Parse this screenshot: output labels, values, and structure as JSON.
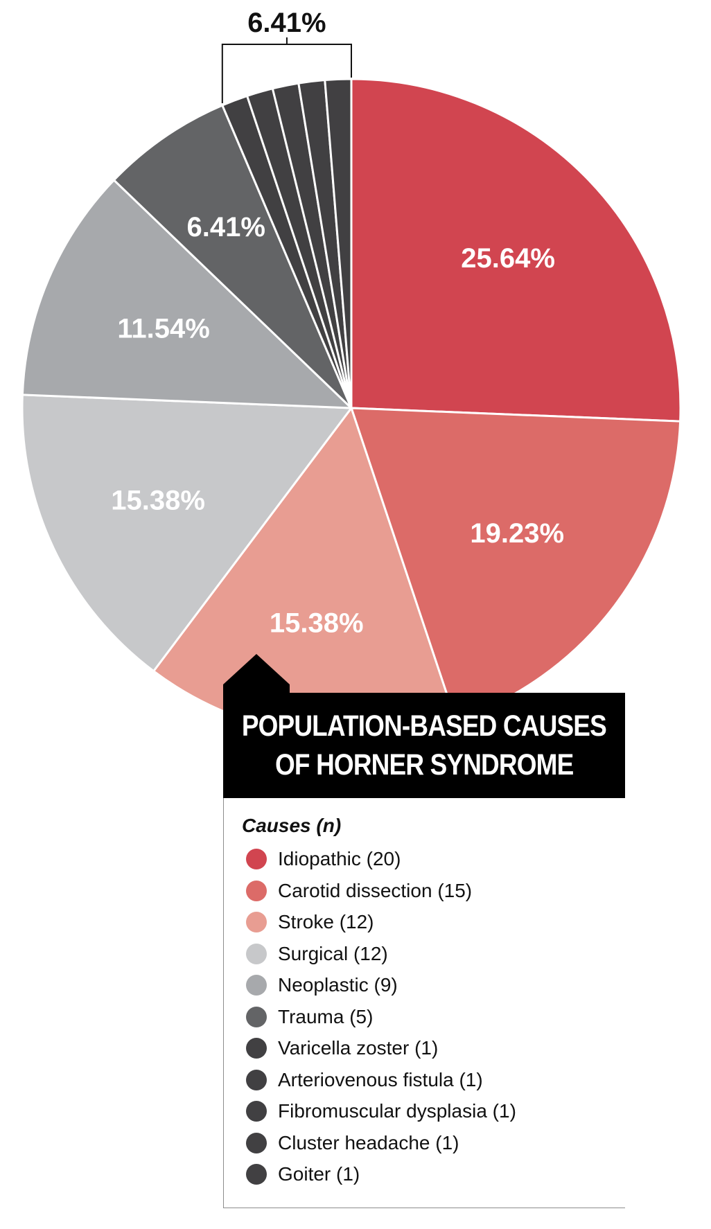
{
  "chart_data": {
    "type": "pie",
    "title": "POPULATION-BASED CAUSES OF HORNER SYNDROME",
    "title_lines": [
      "POPULATION-BASED CAUSES",
      "OF HORNER SYNDROME"
    ],
    "legend_title": "Causes (n)",
    "slices": [
      {
        "label": "Idiopathic (20)",
        "value": 20,
        "percent_label": "25.64%",
        "color": "#d14550"
      },
      {
        "label": "Carotid dissection (15)",
        "value": 15,
        "percent_label": "19.23%",
        "color": "#dc6b68"
      },
      {
        "label": "Stroke (12)",
        "value": 12,
        "percent_label": "15.38%",
        "color": "#e89d92"
      },
      {
        "label": "Surgical (12)",
        "value": 12,
        "percent_label": "15.38%",
        "color": "#c7c8ca"
      },
      {
        "label": "Neoplastic (9)",
        "value": 9,
        "percent_label": "11.54%",
        "color": "#a7a9ac"
      },
      {
        "label": "Trauma (5)",
        "value": 5,
        "percent_label": "6.41%",
        "color": "#636466"
      },
      {
        "label": "Varicella zoster (1)",
        "value": 1,
        "percent_label": "",
        "color": "#414042"
      },
      {
        "label": "Arteriovenous fistula (1)",
        "value": 1,
        "percent_label": "",
        "color": "#414042"
      },
      {
        "label": "Fibromuscular dysplasia (1)",
        "value": 1,
        "percent_label": "",
        "color": "#414042"
      },
      {
        "label": "Cluster headache (1)",
        "value": 1,
        "percent_label": "",
        "color": "#414042"
      },
      {
        "label": "Goiter (1)",
        "value": 1,
        "percent_label": "",
        "color": "#414042"
      }
    ],
    "grouped_label": "6.41%"
  }
}
